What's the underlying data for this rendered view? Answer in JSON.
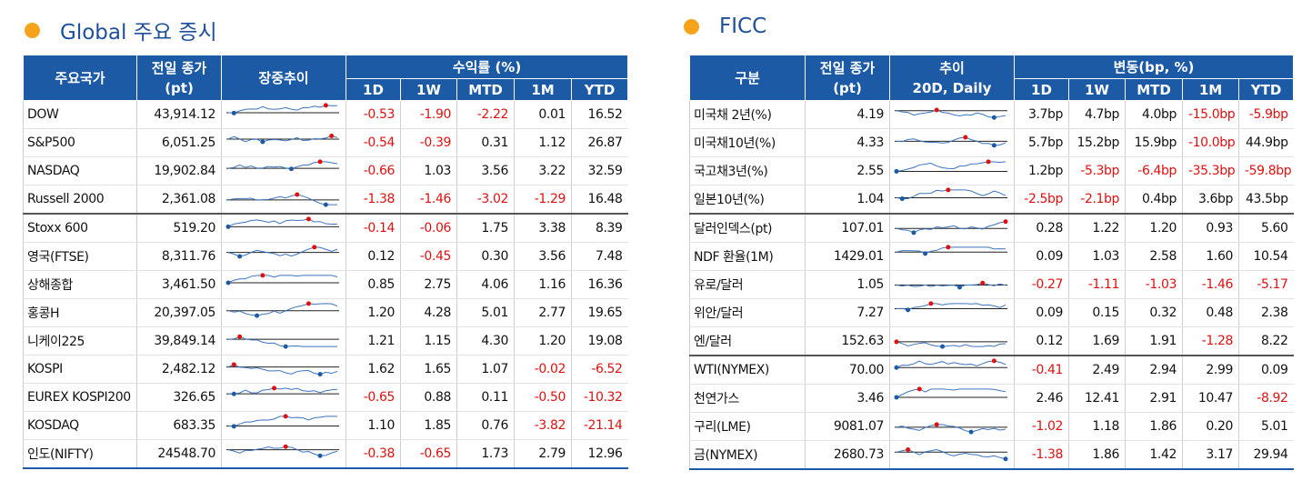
{
  "left": {
    "title": "Global 주요 증시",
    "header_top": [
      "주요국가",
      "전일 종가\n(pt)",
      "장중추이",
      "수익률 (%)"
    ],
    "header_sub": [
      "1D",
      "1W",
      "MTD",
      "1M",
      "YTD"
    ],
    "rows": [
      [
        "DOW",
        "43,914.12",
        "-0.53",
        "-1.90",
        "-2.22",
        "0.01",
        "16.52"
      ],
      [
        "S&P500",
        "6,051.25",
        "-0.54",
        "-0.39",
        "0.31",
        "1.12",
        "26.87"
      ],
      [
        "NASDAQ",
        "19,902.84",
        "-0.66",
        "1.03",
        "3.56",
        "3.22",
        "32.59"
      ],
      [
        "Russell 2000",
        "2,361.08",
        "-1.38",
        "-1.46",
        "-3.02",
        "-1.29",
        "16.48"
      ],
      [
        "Stoxx 600",
        "519.20",
        "-0.14",
        "-0.06",
        "1.75",
        "3.38",
        "8.39"
      ],
      [
        "영국(FTSE)",
        "8,311.76",
        "0.12",
        "-0.45",
        "0.30",
        "3.56",
        "7.48"
      ],
      [
        "상해종합",
        "3,461.50",
        "0.85",
        "2.75",
        "4.06",
        "1.16",
        "16.36"
      ],
      [
        "홍콩H",
        "20,397.05",
        "1.20",
        "4.28",
        "5.01",
        "2.77",
        "19.65"
      ],
      [
        "니케이225",
        "39,849.14",
        "1.21",
        "1.15",
        "4.30",
        "1.20",
        "19.08"
      ],
      [
        "KOSPI",
        "2,482.12",
        "1.62",
        "1.65",
        "1.07",
        "-0.02",
        "-6.52"
      ],
      [
        "EUREX KOSPI200",
        "326.65",
        "-0.65",
        "0.88",
        "0.11",
        "-0.50",
        "-10.32"
      ],
      [
        "KOSDAQ",
        "683.35",
        "1.10",
        "1.85",
        "0.76",
        "-3.82",
        "-21.14"
      ],
      [
        "인도(NIFTY)",
        "24548.70",
        "-0.38",
        "-0.65",
        "1.73",
        "2.79",
        "12.96"
      ]
    ]
  },
  "right": {
    "title": "FICC",
    "header_top": [
      "구분",
      "전일 종가\n(pt)",
      "추이\n20D, Daily",
      "변동(bp, %)"
    ],
    "header_sub": [
      "1D",
      "1W",
      "MTD",
      "1M",
      "YTD"
    ],
    "rows": [
      [
        "미국채 2년(%)",
        "4.19",
        "3.7bp",
        "4.7bp",
        "4.0bp",
        "-15.0bp",
        "-5.9bp"
      ],
      [
        "미국채10년(%)",
        "4.33",
        "5.7bp",
        "15.2bp",
        "15.9bp",
        "-10.0bp",
        "44.9bp"
      ],
      [
        "국고채3년(%)",
        "2.55",
        "1.2bp",
        "-5.3bp",
        "-6.4bp",
        "-35.3bp",
        "-59.8bp"
      ],
      [
        "일본10년(%)",
        "1.04",
        "-2.5bp",
        "-2.1bp",
        "0.4bp",
        "3.6bp",
        "43.5bp"
      ],
      [
        "달러인덱스(pt)",
        "107.01",
        "0.28",
        "1.22",
        "1.20",
        "0.93",
        "5.60"
      ],
      [
        "NDF 환율(1M)",
        "1429.01",
        "0.09",
        "1.03",
        "2.58",
        "1.60",
        "10.54"
      ],
      [
        "유로/달러",
        "1.05",
        "-0.27",
        "-1.11",
        "-1.03",
        "-1.46",
        "-5.17"
      ],
      [
        "위안/달러",
        "7.27",
        "0.09",
        "0.15",
        "0.32",
        "0.48",
        "2.38"
      ],
      [
        "엔/달러",
        "152.63",
        "0.12",
        "1.69",
        "1.91",
        "-1.28",
        "8.22"
      ],
      [
        "WTI(NYMEX)",
        "70.00",
        "-0.41",
        "2.49",
        "2.94",
        "2.99",
        "0.09"
      ],
      [
        "천연가스",
        "3.46",
        "2.46",
        "12.41",
        "2.91",
        "10.47",
        "-8.92"
      ],
      [
        "구리(LME)",
        "9081.07",
        "-1.02",
        "1.18",
        "1.86",
        "0.20",
        "5.01"
      ],
      [
        "금(NYMEX)",
        "2680.73",
        "-1.38",
        "1.86",
        "1.42",
        "3.17",
        "29.94"
      ]
    ]
  }
}
